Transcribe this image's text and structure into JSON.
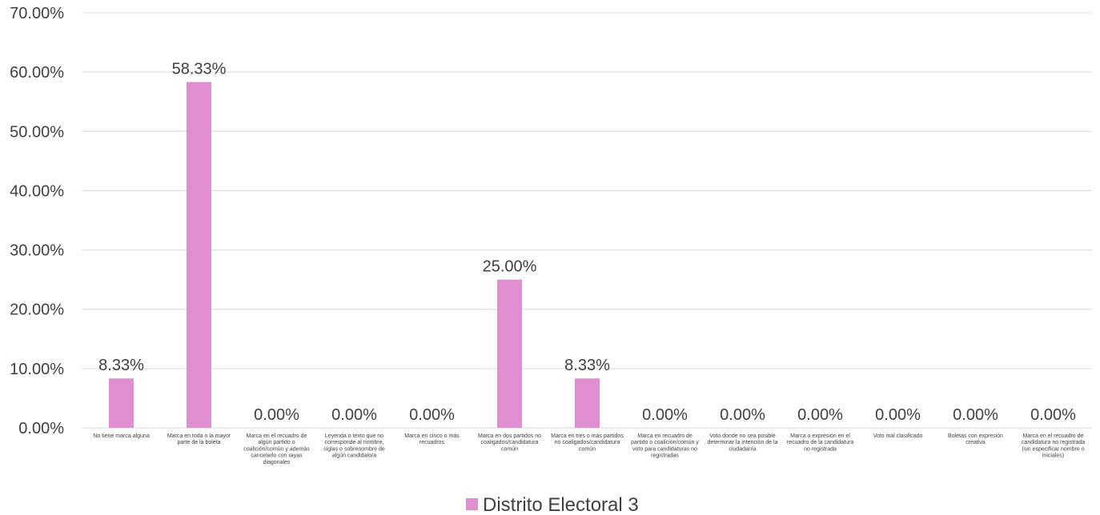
{
  "chart_data": {
    "type": "bar",
    "title": "",
    "xlabel": "",
    "ylabel": "",
    "ylim": [
      0,
      0.7
    ],
    "ytick_values": [
      0,
      0.1,
      0.2,
      0.3,
      0.4,
      0.5,
      0.6,
      0.7
    ],
    "ytick_labels": [
      "0.00%",
      "10.00%",
      "20.00%",
      "30.00%",
      "40.00%",
      "50.00%",
      "60.00%",
      "70.00%"
    ],
    "grid": true,
    "legend_position": "bottom",
    "categories": [
      [
        "No tiene marca alguna"
      ],
      [
        "Marca en toda o la mayor",
        "parte de la boleta"
      ],
      [
        "Marca en el recuadro de",
        "algún partido o",
        "coalición/común y además",
        "cancelarlo con rayas",
        "diagonales"
      ],
      [
        "Leyenda o texto que no",
        "corresponde al nombre,",
        "siglas o sobrenombre de",
        "algún candidato/a"
      ],
      [
        "Marca en cinco o más",
        "recuadros"
      ],
      [
        "Marca en dos partidos no",
        "coaligados/candidatura",
        "común"
      ],
      [
        "Marca en tres o más partidos",
        "no coaligados/candidatura",
        "común"
      ],
      [
        "Marca en recuadro de",
        "partido o coalición/común y",
        "voto para candidaturas no",
        "registradas"
      ],
      [
        "Voto donde no sea posible",
        "determinar la intención de la",
        "ciudadanía"
      ],
      [
        "Marca o expresión en el",
        "recuadro de la candidatura",
        "no registrada"
      ],
      [
        "Voto mal clasificado"
      ],
      [
        "Boletas con expresión",
        "creativa"
      ],
      [
        "Marca en el recuadro de",
        "candidatura no registrada",
        "(sin especificar nombre o",
        "iniciales)"
      ]
    ],
    "series": [
      {
        "name": "Distrito Electoral 3",
        "color": "#df8fd0",
        "values": [
          0.0833,
          0.5833,
          0,
          0,
          0,
          0.25,
          0.0833,
          0,
          0,
          0,
          0,
          0,
          0
        ],
        "data_labels": [
          "8.33%",
          "58.33%",
          "0.00%",
          "0.00%",
          "0.00%",
          "25.00%",
          "8.33%",
          "0.00%",
          "0.00%",
          "0.00%",
          "0.00%",
          "0.00%",
          "0.00%"
        ]
      }
    ]
  }
}
